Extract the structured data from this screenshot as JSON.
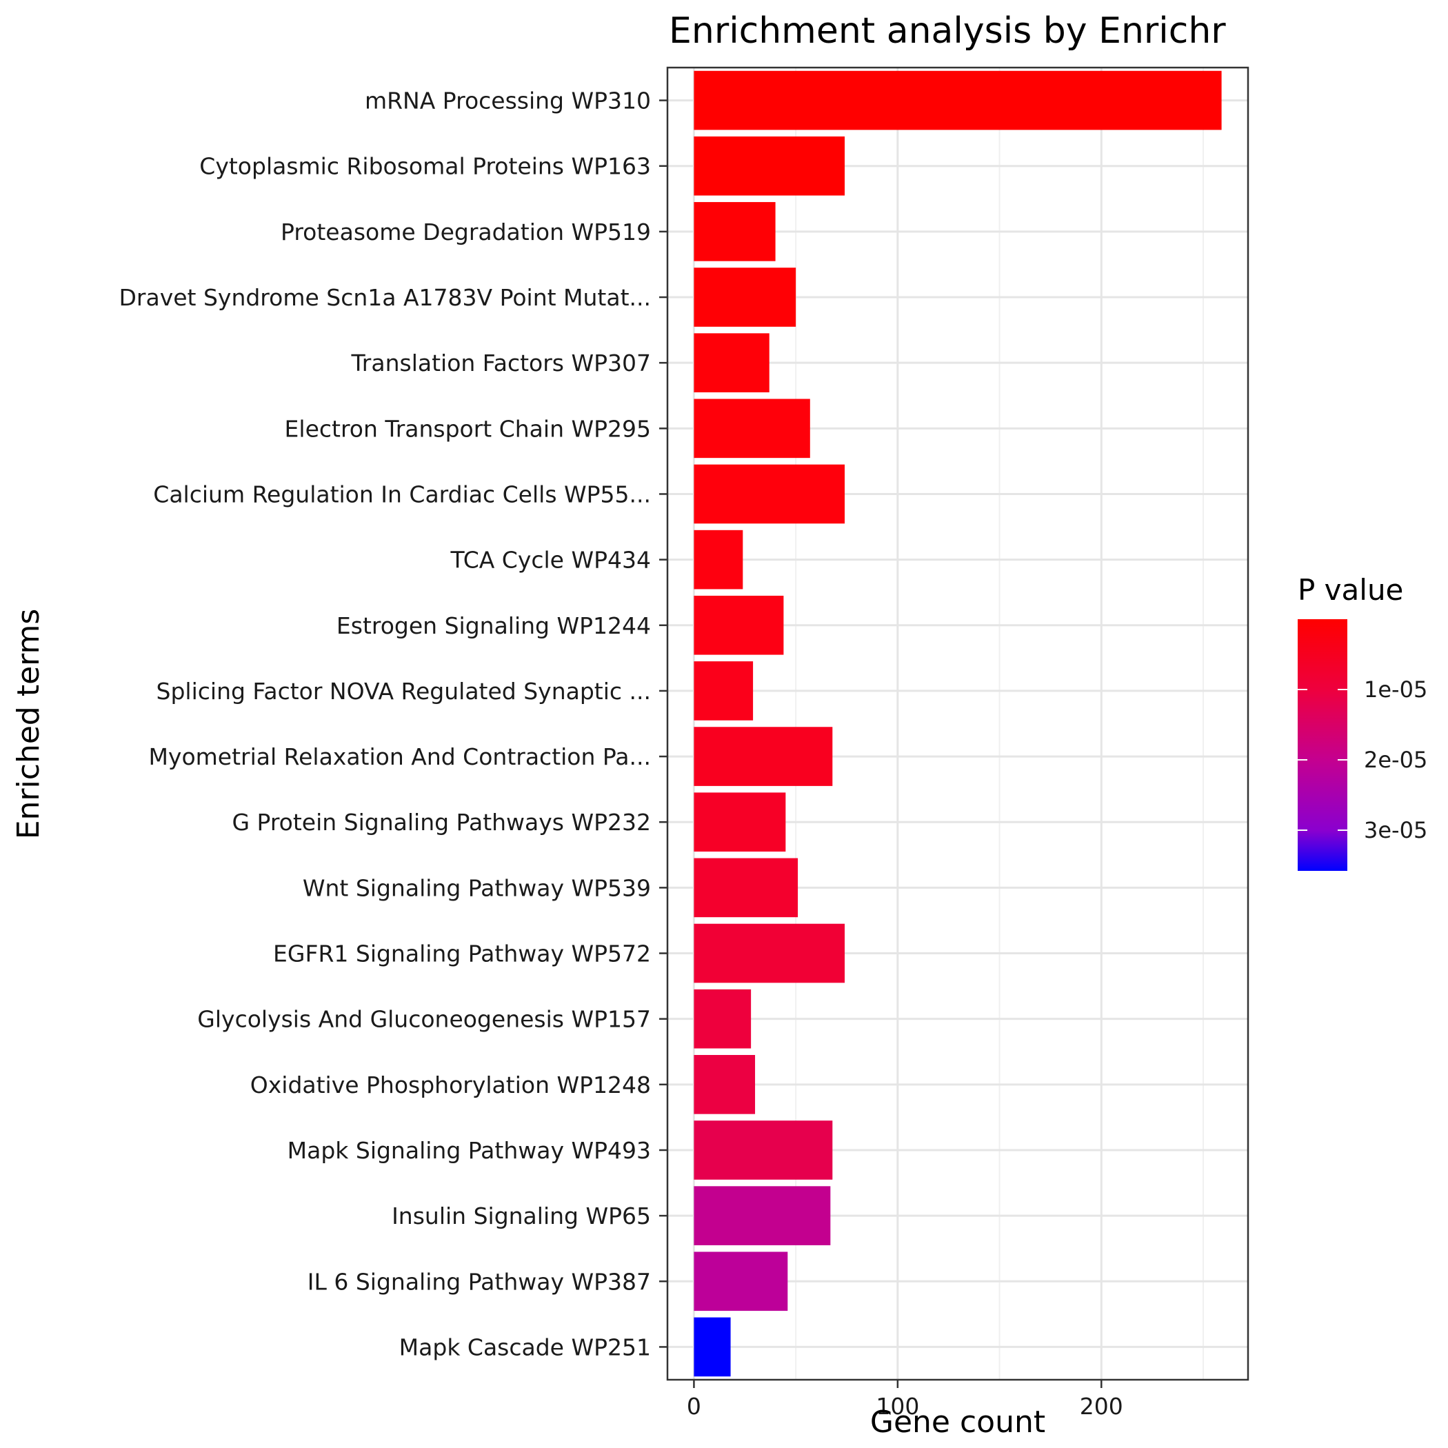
{
  "chart_data": {
    "type": "bar",
    "orientation": "horizontal",
    "title": "Enrichment analysis by Enrichr",
    "xlabel": "Gene count",
    "ylabel": "Enriched terms",
    "xlim": [
      -13,
      272
    ],
    "xticks": [
      "0",
      "100",
      "200"
    ],
    "grid": true,
    "legend": {
      "title": "P value",
      "placement": "right",
      "labels": [
        "1e-05",
        "2e-05",
        "3e-05"
      ],
      "low_color": "#ff0000",
      "high_color": "#0000ff"
    },
    "categories": [
      "mRNA Processing WP310",
      "Cytoplasmic Ribosomal Proteins WP163",
      "Proteasome Degradation WP519",
      "Dravet Syndrome Scn1a A1783V Point Mutat...",
      "Translation Factors WP307",
      "Electron Transport Chain WP295",
      "Calcium Regulation In Cardiac Cells WP55...",
      "TCA Cycle WP434",
      "Estrogen Signaling WP1244",
      "Splicing Factor NOVA Regulated Synaptic ...",
      "Myometrial Relaxation And Contraction Pa...",
      "G Protein Signaling Pathways WP232",
      "Wnt Signaling Pathway WP539",
      "EGFR1 Signaling Pathway WP572",
      "Glycolysis And Gluconeogenesis WP157",
      "Oxidative Phosphorylation WP1248",
      "Mapk Signaling Pathway WP493",
      "Insulin Signaling WP65",
      "IL 6 Signaling Pathway WP387",
      "Mapk Cascade WP251"
    ],
    "values": [
      259,
      74,
      40,
      50,
      37,
      57,
      74,
      24,
      44,
      29,
      68,
      45,
      51,
      74,
      28,
      30,
      68,
      67,
      46,
      18
    ],
    "colors": [
      "#ff0000",
      "#ff0000",
      "#ff0005",
      "#ff0005",
      "#ff0008",
      "#ff000a",
      "#ff000c",
      "#fe000f",
      "#fd0014",
      "#fb001a",
      "#f9001f",
      "#f70026",
      "#f4002d",
      "#f10035",
      "#ee003d",
      "#ec0042",
      "#e6004d",
      "#c3008f",
      "#bd0099",
      "#0000ff"
    ]
  }
}
